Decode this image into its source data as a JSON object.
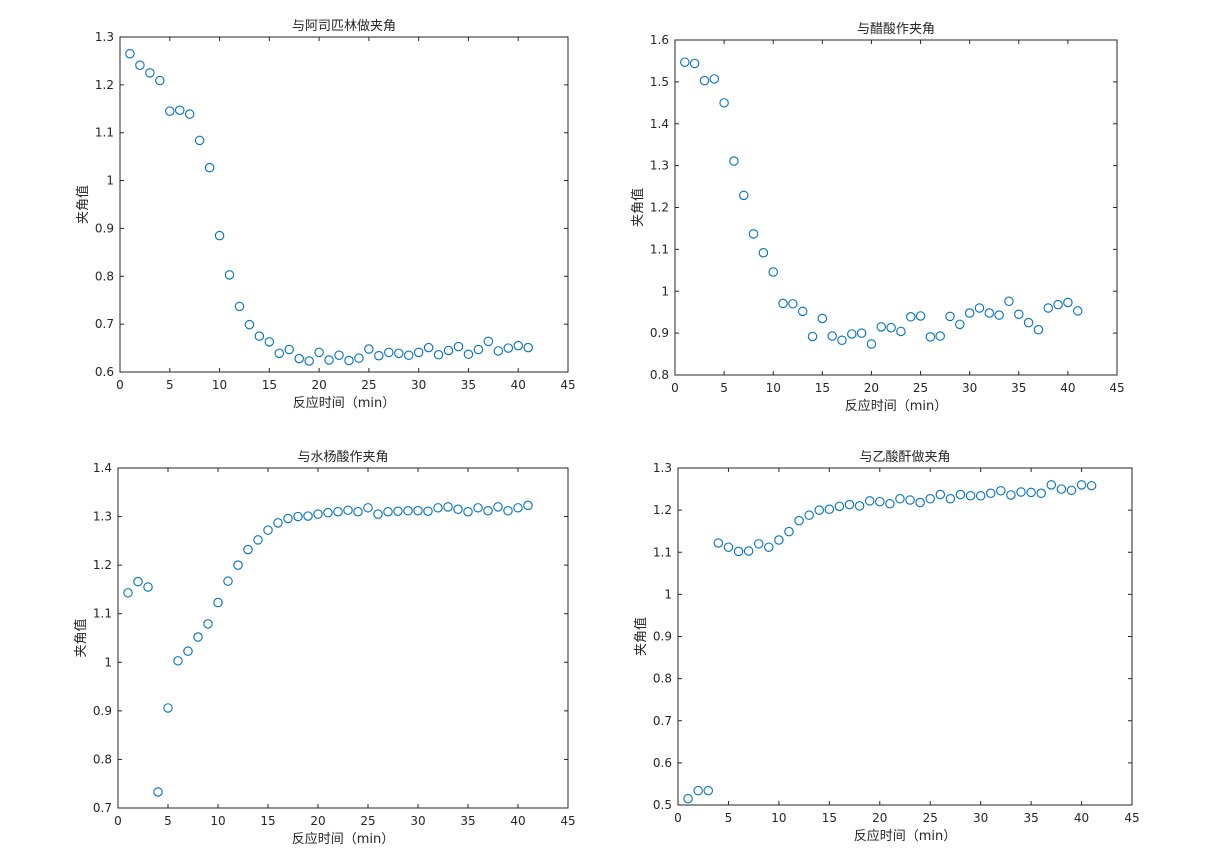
{
  "chart_data": [
    {
      "type": "scatter",
      "title": "与阿司匹林做夹角",
      "xlabel": "反应时间（min）",
      "ylabel": "夹角值",
      "xlim": [
        0,
        45
      ],
      "ylim": [
        0.6,
        1.3
      ],
      "xticks": [
        "0",
        "5",
        "10",
        "15",
        "20",
        "25",
        "30",
        "35",
        "40",
        "45"
      ],
      "yticks": [
        "0.6",
        "0.7",
        "0.8",
        "0.9",
        "1",
        "1.1",
        "1.2",
        "1.3"
      ],
      "grid": false,
      "marker": "circle",
      "color": "#0072BD",
      "x": [
        1,
        2,
        3,
        4,
        5,
        6,
        7,
        8,
        9,
        10,
        11,
        12,
        13,
        14,
        15,
        16,
        17,
        18,
        19,
        20,
        21,
        22,
        23,
        24,
        25,
        26,
        27,
        28,
        29,
        30,
        31,
        32,
        33,
        34,
        35,
        36,
        37,
        38,
        39,
        40,
        41
      ],
      "y": [
        1.265,
        1.241,
        1.225,
        1.209,
        1.145,
        1.147,
        1.139,
        1.084,
        1.027,
        0.885,
        0.803,
        0.737,
        0.699,
        0.675,
        0.663,
        0.639,
        0.647,
        0.628,
        0.623,
        0.641,
        0.625,
        0.635,
        0.624,
        0.629,
        0.648,
        0.634,
        0.641,
        0.639,
        0.635,
        0.641,
        0.651,
        0.636,
        0.645,
        0.653,
        0.637,
        0.647,
        0.664,
        0.644,
        0.65,
        0.655,
        0.651
      ]
    },
    {
      "type": "scatter",
      "title": "与醋酸作夹角",
      "xlabel": "反应时间（min）",
      "ylabel": "夹角值",
      "xlim": [
        0,
        45
      ],
      "ylim": [
        0.8,
        1.6
      ],
      "xticks": [
        "0",
        "5",
        "10",
        "15",
        "20",
        "25",
        "30",
        "35",
        "40",
        "45"
      ],
      "yticks": [
        "0.8",
        "0.9",
        "1",
        "1.1",
        "1.2",
        "1.3",
        "1.4",
        "1.5",
        "1.6"
      ],
      "grid": false,
      "marker": "circle",
      "color": "#0072BD",
      "x": [
        1,
        2,
        3,
        4,
        5,
        6,
        7,
        8,
        9,
        10,
        11,
        12,
        13,
        14,
        15,
        16,
        17,
        18,
        19,
        20,
        21,
        22,
        23,
        24,
        25,
        26,
        27,
        28,
        29,
        30,
        31,
        32,
        33,
        34,
        35,
        36,
        37,
        38,
        39,
        40,
        41
      ],
      "y": [
        1.547,
        1.544,
        1.503,
        1.507,
        1.45,
        1.311,
        1.229,
        1.137,
        1.092,
        1.046,
        0.971,
        0.97,
        0.952,
        0.892,
        0.935,
        0.893,
        0.883,
        0.898,
        0.9,
        0.874,
        0.915,
        0.913,
        0.904,
        0.939,
        0.941,
        0.891,
        0.893,
        0.94,
        0.921,
        0.948,
        0.96,
        0.948,
        0.943,
        0.976,
        0.945,
        0.925,
        0.908,
        0.96,
        0.968,
        0.973,
        0.953
      ]
    },
    {
      "type": "scatter",
      "title": "与水杨酸作夹角",
      "xlabel": "反应时间（min）",
      "ylabel": "夹角值",
      "xlim": [
        0,
        45
      ],
      "ylim": [
        0.7,
        1.4
      ],
      "xticks": [
        "0",
        "5",
        "10",
        "15",
        "20",
        "25",
        "30",
        "35",
        "40",
        "45"
      ],
      "yticks": [
        "0.7",
        "0.8",
        "0.9",
        "1",
        "1.1",
        "1.2",
        "1.3",
        "1.4"
      ],
      "grid": false,
      "marker": "circle",
      "color": "#0072BD",
      "x": [
        1,
        2,
        3,
        4,
        5,
        6,
        7,
        8,
        9,
        10,
        11,
        12,
        13,
        14,
        15,
        16,
        17,
        18,
        19,
        20,
        21,
        22,
        23,
        24,
        25,
        26,
        27,
        28,
        29,
        30,
        31,
        32,
        33,
        34,
        35,
        36,
        37,
        38,
        39,
        40,
        41
      ],
      "y": [
        1.143,
        1.166,
        1.155,
        0.733,
        0.906,
        1.003,
        1.023,
        1.052,
        1.079,
        1.123,
        1.167,
        1.2,
        1.232,
        1.252,
        1.272,
        1.287,
        1.296,
        1.3,
        1.301,
        1.305,
        1.308,
        1.31,
        1.313,
        1.31,
        1.318,
        1.305,
        1.31,
        1.311,
        1.312,
        1.312,
        1.311,
        1.318,
        1.32,
        1.315,
        1.31,
        1.318,
        1.312,
        1.32,
        1.312,
        1.318,
        1.323
      ]
    },
    {
      "type": "scatter",
      "title": "与乙酸酐做夹角",
      "xlabel": "反应时间（min）",
      "ylabel": "夹角值",
      "xlim": [
        0,
        45
      ],
      "ylim": [
        0.5,
        1.3
      ],
      "xticks": [
        "0",
        "5",
        "10",
        "15",
        "20",
        "25",
        "30",
        "35",
        "40",
        "45"
      ],
      "yticks": [
        "0.5",
        "0.6",
        "0.7",
        "0.8",
        "0.9",
        "1",
        "1.1",
        "1.2",
        "1.3"
      ],
      "grid": false,
      "marker": "circle",
      "color": "#0072BD",
      "x": [
        1,
        2,
        3,
        4,
        5,
        6,
        7,
        8,
        9,
        10,
        11,
        12,
        13,
        14,
        15,
        16,
        17,
        18,
        19,
        20,
        21,
        22,
        23,
        24,
        25,
        26,
        27,
        28,
        29,
        30,
        31,
        32,
        33,
        34,
        35,
        36,
        37,
        38,
        39,
        40,
        41
      ],
      "y": [
        0.515,
        0.534,
        0.534,
        1.122,
        1.112,
        1.102,
        1.103,
        1.12,
        1.112,
        1.129,
        1.149,
        1.175,
        1.188,
        1.2,
        1.202,
        1.209,
        1.213,
        1.21,
        1.222,
        1.22,
        1.215,
        1.227,
        1.224,
        1.218,
        1.227,
        1.237,
        1.227,
        1.237,
        1.234,
        1.234,
        1.24,
        1.246,
        1.236,
        1.243,
        1.242,
        1.24,
        1.26,
        1.25,
        1.247,
        1.26,
        1.258
      ]
    }
  ]
}
